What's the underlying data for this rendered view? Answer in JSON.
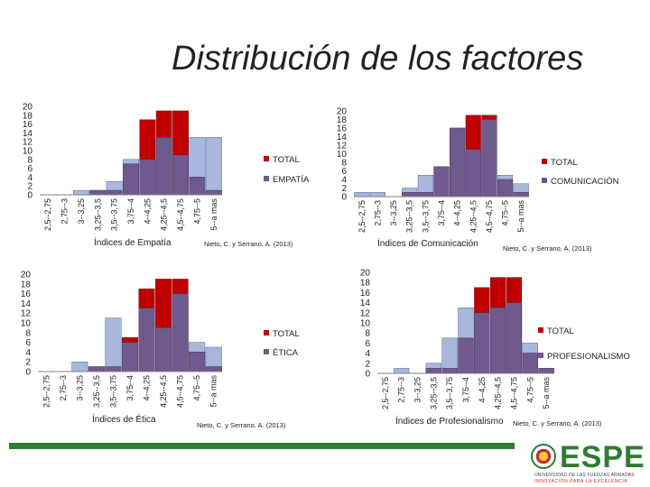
{
  "slide": {
    "title": "Distribución de los factores"
  },
  "colors": {
    "total": "#c00000",
    "factor": "#6e5a8c",
    "extra": "#aab7dc",
    "axis": "#808080",
    "footer": "#2e7d32"
  },
  "logo": {
    "word": "ESPE",
    "line1": "UNIVERSIDAD DE LAS FUERZAS ARMADAS",
    "line2": "INNOVACIÓN PARA LA EXCELENCIA"
  },
  "chart_data": [
    {
      "type": "bar",
      "id": "empatia",
      "categories": [
        "2,5--2,75",
        "2,75--3",
        "3--3,25",
        "3,25--3,5",
        "3,5--3,75",
        "3,75--4",
        "4--4,25",
        "4,25--4,5",
        "4,5--4,75",
        "4,75--5",
        "5--a mas"
      ],
      "series": [
        {
          "name": "TOTAL",
          "values": [
            0,
            0,
            0,
            1,
            1,
            7,
            17,
            19,
            19,
            4,
            1
          ]
        },
        {
          "name": "EMPATÍA",
          "values": [
            0,
            0,
            1,
            1,
            3,
            8,
            8,
            13,
            9,
            13,
            13
          ]
        }
      ],
      "xlabel": "Índices de Empatía",
      "source": "Nieto, C. y Serrano, A. (2013)",
      "yticks": [
        "0",
        "2",
        "4",
        "6",
        "8",
        "10",
        "12",
        "14",
        "16",
        "18",
        "20"
      ],
      "ylim": [
        0,
        20
      ],
      "legend": "right"
    },
    {
      "type": "bar",
      "id": "comunicacion",
      "categories": [
        "2,5--2,75",
        "2,75--3",
        "3--3,25",
        "3,25--3,5",
        "3,5--3,75",
        "3,75--4",
        "4--4,25",
        "4,25--4,5",
        "4,5--4,75",
        "4,75--5",
        "5--a mas"
      ],
      "series": [
        {
          "name": "TOTAL",
          "values": [
            0,
            0,
            0,
            1,
            1,
            7,
            16,
            19,
            19,
            4,
            1
          ]
        },
        {
          "name": "COMUNICACIÓN",
          "values": [
            1,
            1,
            0,
            2,
            5,
            7,
            16,
            11,
            18,
            5,
            3
          ]
        }
      ],
      "xlabel": "Índices de Comunicación",
      "source": "Nieto, C. y Serrano, A. (2013)",
      "yticks": [
        "0",
        "2",
        "4",
        "6",
        "8",
        "10",
        "12",
        "14",
        "16",
        "18",
        "20"
      ],
      "ylim": [
        0,
        20
      ],
      "legend": "right"
    },
    {
      "type": "bar",
      "id": "etica",
      "categories": [
        "2,5--2,75",
        "2,75--3",
        "3--3,25",
        "3,25--3,5",
        "3,5--3,75",
        "3,75--4",
        "4--4,25",
        "4,25--4,5",
        "4,5--4,75",
        "4,75--5",
        "5--a mas"
      ],
      "series": [
        {
          "name": "TOTAL",
          "values": [
            0,
            0,
            0,
            1,
            1,
            7,
            17,
            19,
            19,
            4,
            1
          ]
        },
        {
          "name": "ÉTICA",
          "values": [
            0,
            0,
            2,
            1,
            11,
            6,
            13,
            9,
            16,
            6,
            5
          ]
        }
      ],
      "xlabel": "Índices de Ética",
      "source": "Nieto, C. y Serrano, A. (2013)",
      "yticks": [
        "0",
        "2",
        "4",
        "6",
        "8",
        "10",
        "12",
        "14",
        "16",
        "18",
        "20"
      ],
      "ylim": [
        0,
        20
      ],
      "legend": "right"
    },
    {
      "type": "bar",
      "id": "profesionalismo",
      "categories": [
        "2,5--2,75",
        "2,75--3",
        "3--3,25",
        "3,25--3,5",
        "3,5--3,75",
        "3,75--4",
        "4--4,25",
        "4,25--4,5",
        "4,5--4,75",
        "4,75--5",
        "5--a mas"
      ],
      "series": [
        {
          "name": "TOTAL",
          "values": [
            0,
            0,
            0,
            1,
            1,
            7,
            17,
            19,
            19,
            4,
            1
          ]
        },
        {
          "name": "PROFESIONALISMO",
          "values": [
            0,
            1,
            0,
            2,
            7,
            13,
            12,
            13,
            14,
            6,
            1
          ]
        }
      ],
      "xlabel": "Índices de Profesionalismo",
      "source": "Nieto, C. y Serrano, A. (2013)",
      "yticks": [
        "0",
        "2",
        "4",
        "6",
        "8",
        "10",
        "12",
        "14",
        "16",
        "18",
        "20"
      ],
      "ylim": [
        0,
        20
      ],
      "legend": "right"
    }
  ]
}
